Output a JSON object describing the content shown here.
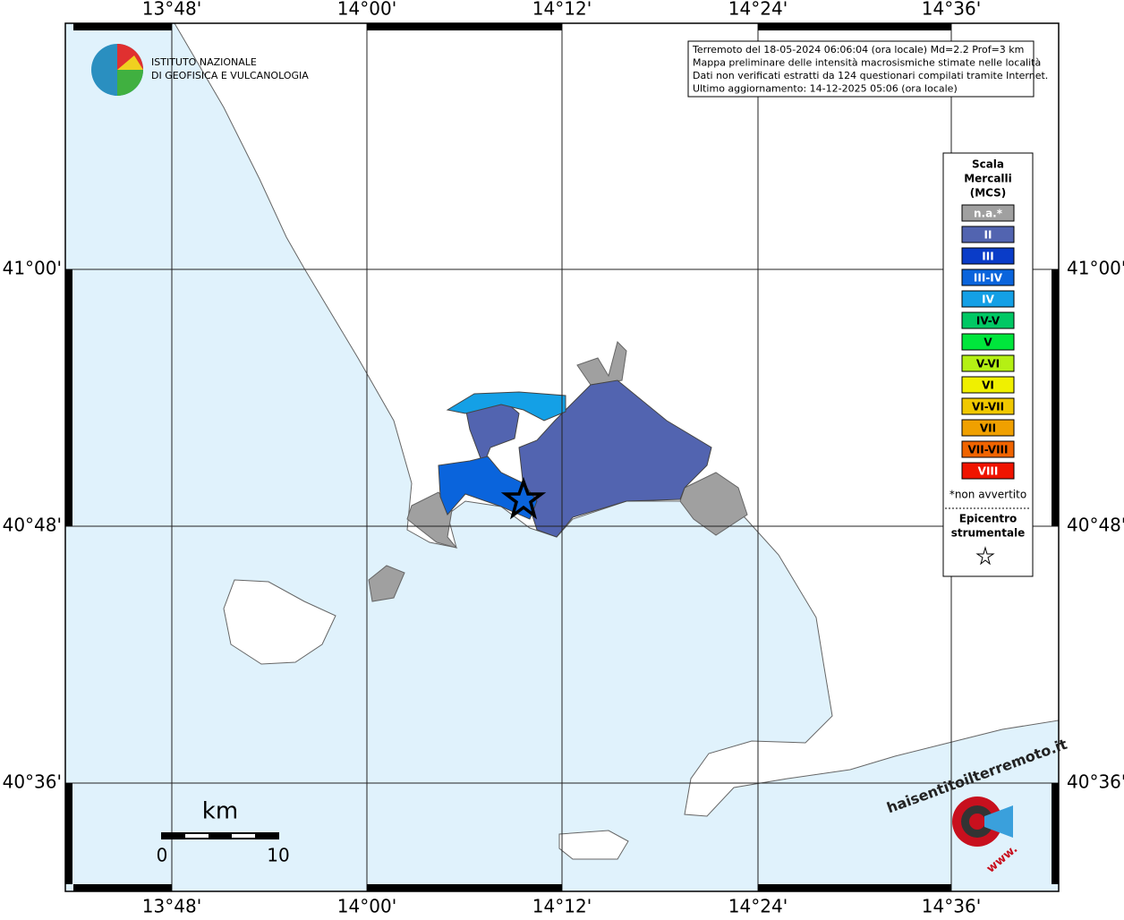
{
  "map": {
    "logo": {
      "line1": "ISTITUTO NAZIONALE",
      "line2": "DI GEOFISICA E VULCANOLOGIA"
    },
    "info": [
      "Terremoto del 18-05-2024 06:06:04 (ora locale) Md=2.2 Prof=3 km",
      "Mappa preliminare delle intensità macrosismiche stimate nelle località",
      "Dati non verificati estratti da 124 questionari compilati tramite Internet.",
      "Ultimo aggiornamento: 14-12-2025 05:06 (ora locale)"
    ],
    "lon_ticks": [
      "13°48'",
      "14°00'",
      "14°12'",
      "14°24'",
      "14°36'"
    ],
    "lat_ticks": [
      "41°00'",
      "40°48'",
      "40°36'"
    ],
    "legend": {
      "title": [
        "Scala",
        "Mercalli",
        "(MCS)"
      ],
      "items": [
        {
          "label": "n.a.*",
          "color": "#a0a0a0"
        },
        {
          "label": "II",
          "color": "#5264b0"
        },
        {
          "label": "III",
          "color": "#0a3cc8"
        },
        {
          "label": "III-IV",
          "color": "#0a64dc"
        },
        {
          "label": "IV",
          "color": "#14a0e6"
        },
        {
          "label": "IV-V",
          "color": "#00c864"
        },
        {
          "label": "V",
          "color": "#00e63c"
        },
        {
          "label": "V-VI",
          "color": "#b4f014"
        },
        {
          "label": "VI",
          "color": "#f0f000"
        },
        {
          "label": "VI-VII",
          "color": "#f0c800"
        },
        {
          "label": "VII",
          "color": "#f0a000"
        },
        {
          "label": "VII-VIII",
          "color": "#f06400"
        },
        {
          "label": "VIII",
          "color": "#f01400"
        }
      ],
      "note": "*non avvertito",
      "epicenter": [
        "Epicentro",
        "strumentale"
      ]
    },
    "scale_bar": {
      "unit": "km",
      "start": "0",
      "end": "10"
    },
    "site_logo": {
      "name": "haisentitoilterremoto.it",
      "prefix": "www."
    }
  }
}
